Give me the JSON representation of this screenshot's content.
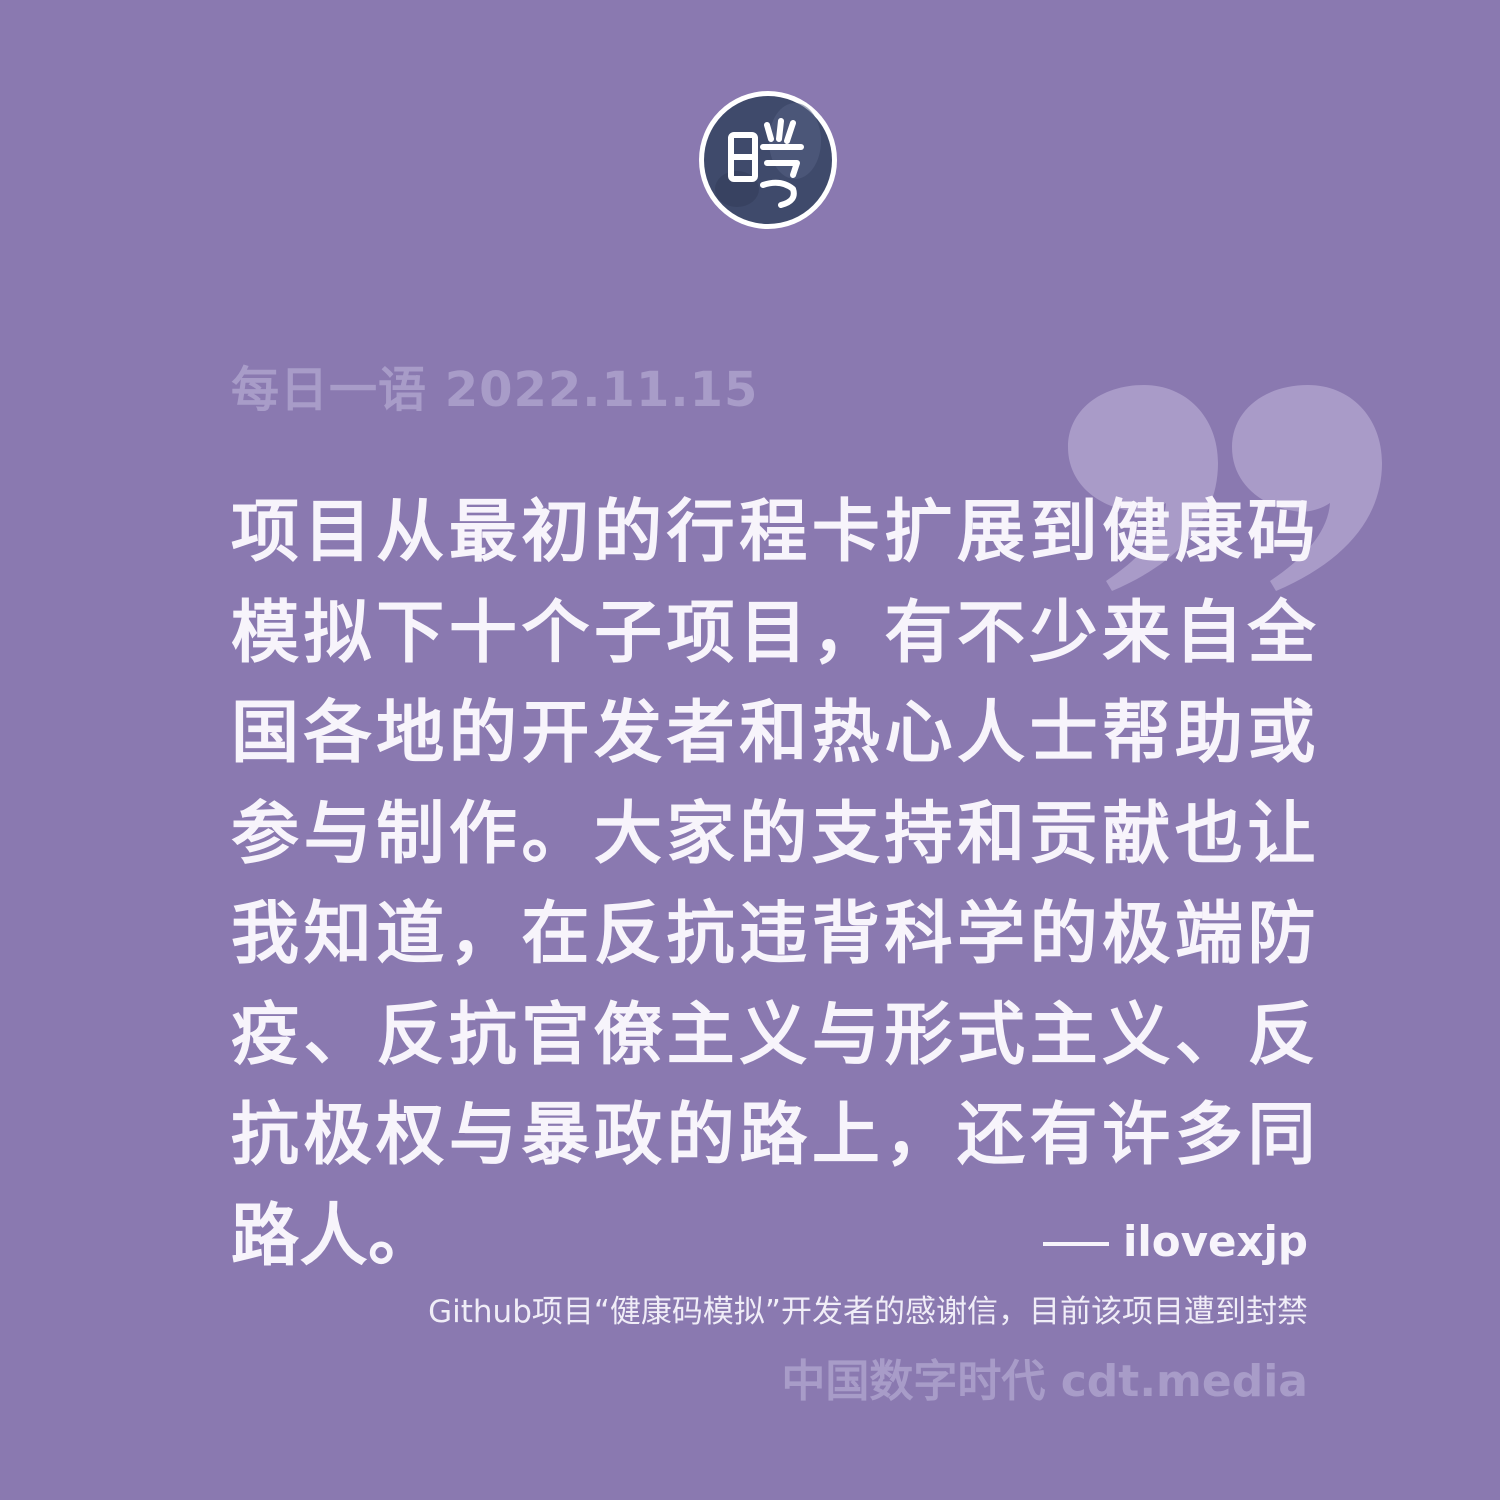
{
  "header": {
    "label": "每日一语 2022.11.15"
  },
  "logo": {
    "icon": "cdt-seal-logo-icon",
    "glyph": "时"
  },
  "quote": {
    "icon": "closing-quote-mark-icon",
    "text": "项目从最初的行程卡扩展到健康码模拟下十个子项目，有不少来自全国各地的开发者和热心人士帮助或参与制作。大家的支持和贡献也让我知道，在反抗违背科学的极端防疫、反抗官僚主义与形式主义、反抗极权与暴政的路上，还有许多同路人。"
  },
  "attribution": {
    "author": "ilovexjp"
  },
  "source_note": "Github项目“健康码模拟”开发者的感谢信，目前该项目遭到封禁",
  "footer": {
    "brand": "中国数字时代 cdt.media"
  },
  "colors": {
    "background": "#8a79b0",
    "text_primary": "#f7f4fb",
    "text_muted": "#a89cc8",
    "quote_mark": "#a99bc8",
    "logo_fill": "#3f4a6b"
  }
}
